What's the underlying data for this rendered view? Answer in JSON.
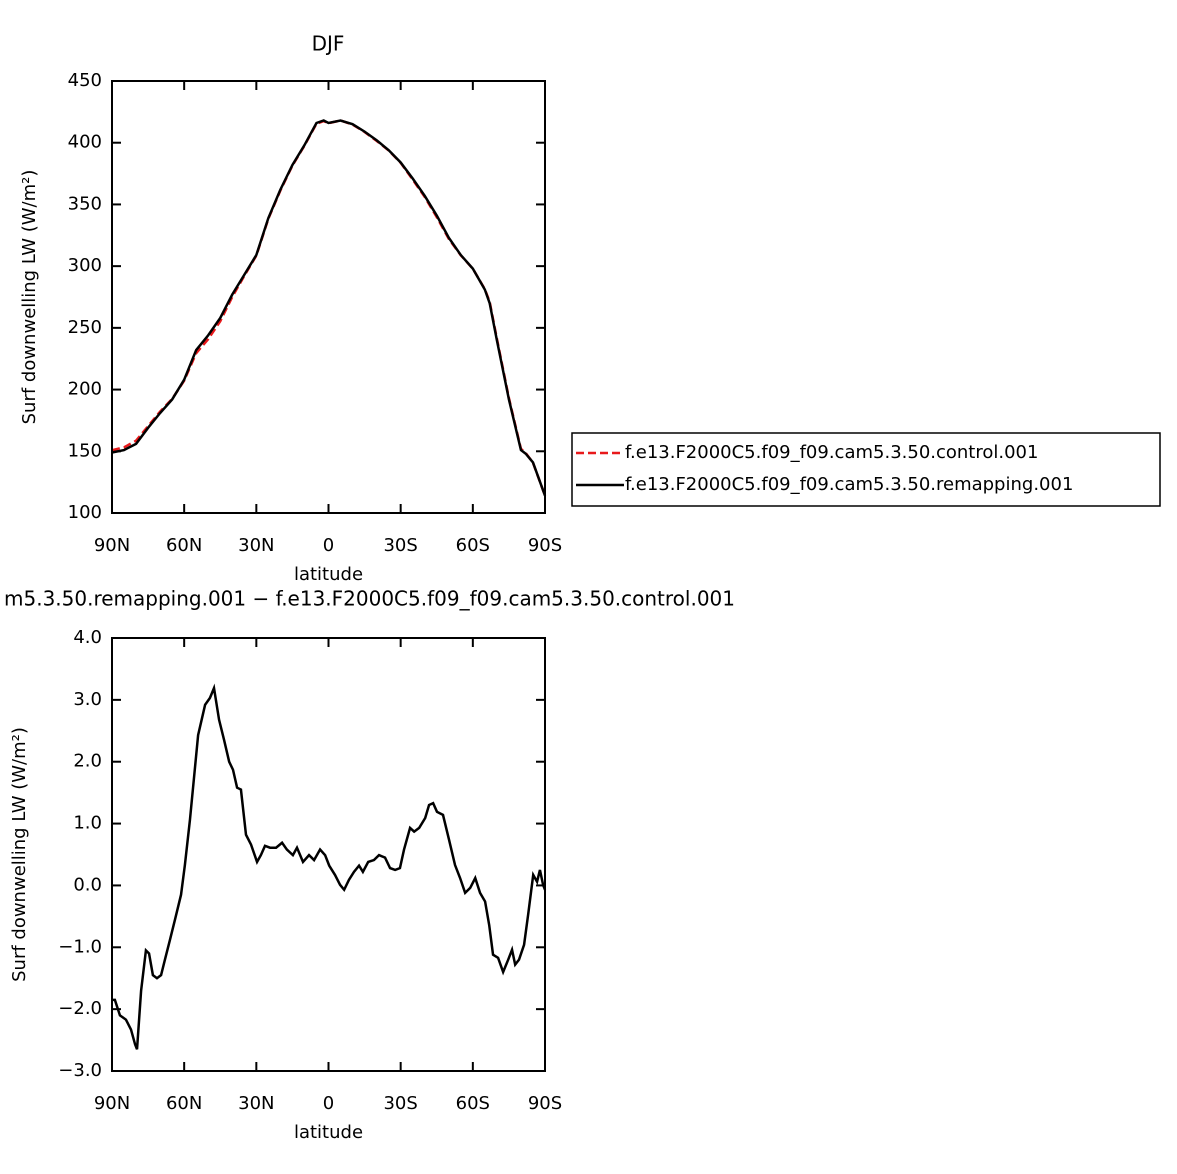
{
  "chart_data": [
    {
      "type": "line",
      "title": "DJF",
      "ylabel": "Surf downwelling LW (W/m²)",
      "xlabel": "latitude",
      "x": [
        90,
        85,
        80,
        75,
        70,
        65,
        60,
        55,
        50,
        45,
        40,
        35,
        30,
        25,
        20,
        15,
        10,
        5,
        2,
        0,
        -5,
        -10,
        -15,
        -20,
        -25,
        -30,
        -35,
        -40,
        -45,
        -50,
        -55,
        -60,
        -65,
        -67,
        -70,
        -75,
        -80,
        -82,
        -85,
        -90
      ],
      "series": [
        {
          "name": "f.e13.F2000C5.f09_f09.cam5.3.50.control.001",
          "color": "#e8191b",
          "dash": "dashed",
          "values": [
            150.9,
            153.2,
            158.6,
            170.4,
            182.2,
            192.4,
            207.2,
            229.5,
            240.9,
            255.4,
            275.1,
            292.2,
            308.5,
            338.4,
            361.3,
            381.5,
            397.6,
            415.4,
            417.5,
            415.8,
            418,
            414.7,
            408.7,
            401.5,
            393.7,
            383.7,
            370.1,
            356.1,
            339.7,
            322.1,
            308.8,
            297.9,
            281.3,
            271.1,
            241.3,
            193.1,
            152,
            148.5,
            140.8,
            114.1
          ]
        },
        {
          "name": "f.e13.F2000C5.f09_f09.cam5.3.50.remapping.001",
          "color": "#000000",
          "dash": "solid",
          "values": [
            149,
            151,
            156,
            169,
            181,
            192,
            208,
            232,
            244,
            258,
            277,
            293,
            309,
            339,
            362,
            382,
            398,
            416,
            418,
            416,
            418,
            415,
            409,
            402,
            394,
            384,
            371,
            357,
            341,
            323,
            309,
            298,
            281,
            270,
            240,
            192,
            151,
            148,
            141,
            114
          ]
        }
      ],
      "xlim": [
        90,
        -90
      ],
      "xticks": [
        {
          "value": 90,
          "label": "90N"
        },
        {
          "value": 60,
          "label": "60N"
        },
        {
          "value": 30,
          "label": "30N"
        },
        0,
        {
          "value": -30,
          "label": "30S"
        },
        {
          "value": -60,
          "label": "60S"
        },
        {
          "value": -90,
          "label": "90S"
        }
      ],
      "ylim": [
        100,
        450
      ],
      "yticks": [
        100,
        150,
        200,
        250,
        300,
        350,
        400,
        450
      ],
      "legend": "right"
    },
    {
      "type": "line",
      "title": "m5.3.50.remapping.001 − f.e13.F2000C5.f09_f09.cam5.3.50.control.001",
      "ylabel": "Surf downwelling LW (W/m²)",
      "xlabel": "latitude",
      "x": [
        90,
        88.8,
        86.7,
        84.2,
        82.1,
        80.4,
        79.6,
        77.9,
        75.9,
        74.6,
        73,
        71.3,
        69.6,
        68,
        65.9,
        63.8,
        61.3,
        59.7,
        57.6,
        54.2,
        51.3,
        49.3,
        47.6,
        45.5,
        43.4,
        41.3,
        39.7,
        38,
        36.4,
        34.3,
        32.2,
        29.7,
        28.1,
        26.4,
        24.3,
        21.8,
        19.3,
        17.3,
        14.8,
        13.1,
        10.6,
        8.1,
        6,
        3.5,
        1.4,
        -0.3,
        -2.7,
        -4.8,
        -6.5,
        -8.5,
        -10.6,
        -12.7,
        -14.3,
        -16.5,
        -18.9,
        -21,
        -23.5,
        -25.6,
        -27.7,
        -29.7,
        -31.4,
        -33.9,
        -35.6,
        -37.7,
        -40.2,
        -41.8,
        -43.5,
        -45.1,
        -47.6,
        -50.1,
        -52.6,
        -54.7,
        -56.8,
        -58.9,
        -61,
        -63,
        -65.1,
        -66.8,
        -68.4,
        -70.5,
        -72.6,
        -74.7,
        -76.3,
        -77.6,
        -79.2,
        -81.3,
        -83,
        -85.1,
        -86.7,
        -87.9,
        -89.2,
        -90
      ],
      "values": [
        -1.85,
        -1.85,
        -2.1,
        -2.17,
        -2.33,
        -2.57,
        -2.65,
        -1.7,
        -1.05,
        -1.1,
        -1.45,
        -1.5,
        -1.45,
        -1.2,
        -0.88,
        -0.55,
        -0.15,
        0.33,
        1.06,
        2.43,
        2.92,
        3.03,
        3.19,
        2.68,
        2.35,
        2,
        1.87,
        1.58,
        1.55,
        0.82,
        0.66,
        0.38,
        0.49,
        0.64,
        0.61,
        0.61,
        0.69,
        0.58,
        0.49,
        0.61,
        0.38,
        0.49,
        0.41,
        0.58,
        0.49,
        0.32,
        0.17,
        0.01,
        -0.07,
        0.09,
        0.22,
        0.32,
        0.22,
        0.38,
        0.41,
        0.49,
        0.45,
        0.28,
        0.25,
        0.28,
        0.58,
        0.93,
        0.87,
        0.93,
        1.09,
        1.3,
        1.33,
        1.19,
        1.14,
        0.74,
        0.33,
        0.12,
        -0.12,
        -0.04,
        0.12,
        -0.12,
        -0.26,
        -0.64,
        -1.12,
        -1.17,
        -1.4,
        -1.2,
        -1.04,
        -1.28,
        -1.2,
        -0.96,
        -0.47,
        0.17,
        0.06,
        0.25,
        0.01,
        -0.07
      ],
      "color": "#000000",
      "xlim": [
        90,
        -90
      ],
      "xticks": [
        {
          "value": 90,
          "label": "90N"
        },
        {
          "value": 60,
          "label": "60N"
        },
        {
          "value": 30,
          "label": "30N"
        },
        0,
        {
          "value": -30,
          "label": "30S"
        },
        {
          "value": -60,
          "label": "60S"
        },
        {
          "value": -90,
          "label": "90S"
        }
      ],
      "ylim": [
        -3,
        4
      ],
      "yticks": [
        {
          "value": -3,
          "label": "−3.0"
        },
        {
          "value": -2,
          "label": "−2.0"
        },
        {
          "value": -1,
          "label": "−1.0"
        },
        {
          "value": 0,
          "label": "0.0"
        },
        {
          "value": 1,
          "label": "1.0"
        },
        {
          "value": 2,
          "label": "2.0"
        },
        {
          "value": 3,
          "label": "3.0"
        },
        {
          "value": 4,
          "label": "4.0"
        }
      ]
    }
  ]
}
